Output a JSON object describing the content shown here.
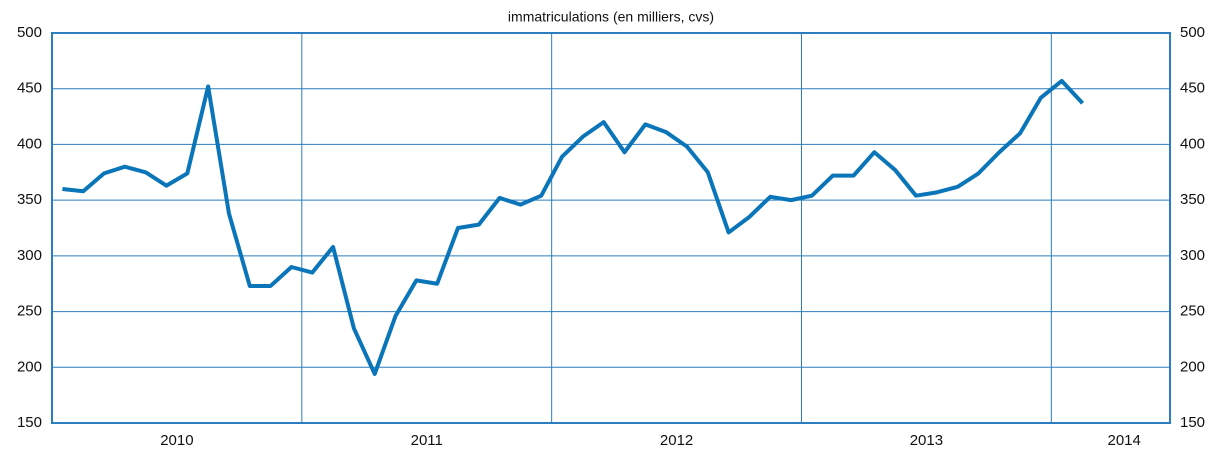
{
  "chart_data": {
    "type": "line",
    "subtitle": "immatriculations (en milliers, cvs)",
    "x": [
      0,
      1,
      2,
      3,
      4,
      5,
      6,
      7,
      8,
      9,
      10,
      11,
      12,
      13,
      14,
      15,
      16,
      17,
      18,
      19,
      20,
      21,
      22,
      23,
      24,
      25,
      26,
      27,
      28,
      29,
      30,
      31,
      32,
      33,
      34,
      35,
      36,
      37,
      38,
      39,
      40,
      41,
      42,
      43,
      44,
      45,
      46,
      47,
      48,
      49
    ],
    "series": [
      {
        "color": "#0a75b8",
        "values": [
          360,
          358,
          374,
          380,
          375,
          363,
          374,
          452,
          338,
          273,
          273,
          290,
          285,
          308,
          235,
          194,
          246,
          278,
          275,
          325,
          328,
          352,
          346,
          354,
          389,
          407,
          420,
          393,
          418,
          411,
          398,
          375,
          321,
          335,
          353,
          350,
          354,
          372,
          372,
          393,
          377,
          354,
          357,
          362,
          374,
          393,
          410,
          442,
          457,
          437
        ]
      }
    ],
    "xlim": [
      -0.5,
      53.2
    ],
    "xticks": [
      {
        "value": 5.5,
        "label": "2010"
      },
      {
        "value": 17.5,
        "label": "2011"
      },
      {
        "value": 29.5,
        "label": "2012"
      },
      {
        "value": 41.5,
        "label": "2013"
      },
      {
        "value": 51,
        "label": "2014"
      }
    ],
    "xgrid": [
      11.5,
      23.5,
      35.5,
      47.5
    ],
    "ylim": [
      150,
      500
    ],
    "yticks": [
      150,
      200,
      250,
      300,
      350,
      400,
      450,
      500
    ],
    "grid": true,
    "grid_color": "#2a7dc0"
  }
}
